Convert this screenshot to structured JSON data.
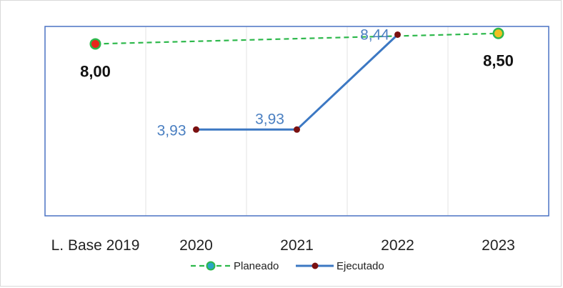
{
  "chart_data": {
    "type": "line",
    "categories": [
      "L. Base 2019",
      "2020",
      "2021",
      "2022",
      "2023"
    ],
    "ylim": [
      0,
      9
    ],
    "grid": "vertical",
    "legend_position": "bottom",
    "series": [
      {
        "name": "Planeado",
        "values": [
          8.0,
          null,
          null,
          null,
          8.5
        ],
        "labels": [
          "8,00",
          null,
          null,
          null,
          "8,50"
        ],
        "color": "#2db84b",
        "style": "dashed",
        "marker_colors": [
          "#e8261a",
          null,
          null,
          null,
          "#f0c020"
        ]
      },
      {
        "name": "Ejecutado",
        "values": [
          null,
          3.93,
          3.93,
          8.44,
          null
        ],
        "labels": [
          null,
          "3,93",
          "3,93",
          "8,44",
          null
        ],
        "color": "#3c78c3",
        "style": "solid",
        "marker_color": "#7a1010"
      }
    ]
  }
}
